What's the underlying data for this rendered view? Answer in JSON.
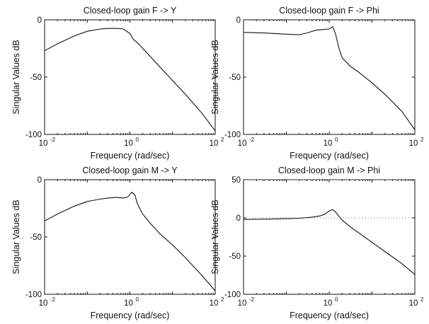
{
  "figure": {
    "plots": [
      {
        "title": "Closed-loop gain F -> Y",
        "xlabel": "Frequency (rad/sec)",
        "ylabel": "Singular Values dB",
        "yticks": [
          "0",
          "-50",
          "-100"
        ],
        "xticks": [
          {
            "base": "10",
            "exp": "-2"
          },
          {
            "base": "10",
            "exp": "0"
          },
          {
            "base": "10",
            "exp": "2"
          }
        ]
      },
      {
        "title": "Closed-loop gain F -> Phi",
        "xlabel": "Frequency (rad/sec)",
        "ylabel": "Singular Values dB",
        "yticks": [
          "0",
          "-50",
          "-100"
        ],
        "xticks": [
          {
            "base": "10",
            "exp": "-2"
          },
          {
            "base": "10",
            "exp": "0"
          },
          {
            "base": "10",
            "exp": "2"
          }
        ]
      },
      {
        "title": "Closed-loop gain M -> Y",
        "xlabel": "Frequency (rad/sec)",
        "ylabel": "Singular Values dB",
        "yticks": [
          "0",
          "-50",
          "-100"
        ],
        "xticks": [
          {
            "base": "10",
            "exp": "-2"
          },
          {
            "base": "10",
            "exp": "0"
          },
          {
            "base": "10",
            "exp": "2"
          }
        ]
      },
      {
        "title": "Closed-loop gain M -> Phi",
        "xlabel": "Frequency (rad/sec)",
        "ylabel": "Singular Values dB",
        "yticks": [
          "50",
          "0",
          "-50",
          "-100"
        ],
        "xticks": [
          {
            "base": "10",
            "exp": "-2"
          },
          {
            "base": "10",
            "exp": "0"
          },
          {
            "base": "10",
            "exp": "2"
          }
        ]
      }
    ]
  },
  "chart_data": [
    {
      "type": "line",
      "title": "Closed-loop gain F -> Y",
      "xlabel": "Frequency (rad/sec)",
      "ylabel": "Singular Values dB",
      "xscale": "log",
      "xlim": [
        0.01,
        100
      ],
      "ylim": [
        -100,
        0
      ],
      "grid": false,
      "series": [
        {
          "x": [
            0.01,
            0.02,
            0.05,
            0.1,
            0.2,
            0.3,
            0.5,
            0.7,
            1.0,
            1.2,
            1.5,
            2,
            3,
            5,
            10,
            20,
            50,
            100
          ],
          "y": [
            -27,
            -21,
            -14,
            -10,
            -8,
            -7.5,
            -7.5,
            -8,
            -12,
            -17,
            -20,
            -25,
            -32,
            -41,
            -53,
            -65,
            -82,
            -97
          ]
        }
      ]
    },
    {
      "type": "line",
      "title": "Closed-loop gain F -> Phi",
      "xlabel": "Frequency (rad/sec)",
      "ylabel": "Singular Values dB",
      "xscale": "log",
      "xlim": [
        0.01,
        100
      ],
      "ylim": [
        -100,
        0
      ],
      "grid": false,
      "series": [
        {
          "x": [
            0.01,
            0.03,
            0.1,
            0.2,
            0.3,
            0.5,
            0.7,
            1.0,
            1.2,
            1.4,
            1.7,
            2,
            3,
            5,
            10,
            20,
            50,
            100
          ],
          "y": [
            -11,
            -11.5,
            -12.5,
            -13,
            -11.5,
            -9,
            -8.5,
            -8,
            -6,
            -12,
            -25,
            -33,
            -40,
            -46,
            -55,
            -65,
            -80,
            -96
          ]
        }
      ]
    },
    {
      "type": "line",
      "title": "Closed-loop gain M -> Y",
      "xlabel": "Frequency (rad/sec)",
      "ylabel": "Singular Values dB",
      "xscale": "log",
      "xlim": [
        0.01,
        100
      ],
      "ylim": [
        -100,
        0
      ],
      "grid": false,
      "series": [
        {
          "x": [
            0.01,
            0.02,
            0.05,
            0.1,
            0.2,
            0.3,
            0.5,
            0.7,
            0.9,
            1.1,
            1.3,
            1.5,
            2,
            3,
            5,
            10,
            20,
            50,
            100
          ],
          "y": [
            -36,
            -30,
            -23,
            -19,
            -17,
            -16,
            -15.5,
            -16,
            -15,
            -11,
            -13,
            -21,
            -30,
            -38,
            -47,
            -57,
            -68,
            -84,
            -97
          ]
        }
      ]
    },
    {
      "type": "line",
      "title": "Closed-loop gain M -> Phi",
      "xlabel": "Frequency (rad/sec)",
      "ylabel": "Singular Values dB",
      "xscale": "log",
      "xlim": [
        0.01,
        100
      ],
      "ylim": [
        -100,
        50
      ],
      "grid": false,
      "dotted_hlines": [
        50,
        0
      ],
      "series": [
        {
          "x": [
            0.01,
            0.05,
            0.1,
            0.2,
            0.4,
            0.6,
            0.8,
            1.0,
            1.2,
            1.4,
            1.7,
            2,
            3,
            5,
            10,
            20,
            50,
            100
          ],
          "y": [
            -2,
            -1.5,
            -1,
            -0.5,
            1,
            2.5,
            5,
            9,
            11,
            8,
            2,
            -3,
            -11,
            -20,
            -32,
            -44,
            -60,
            -74
          ]
        }
      ]
    }
  ]
}
